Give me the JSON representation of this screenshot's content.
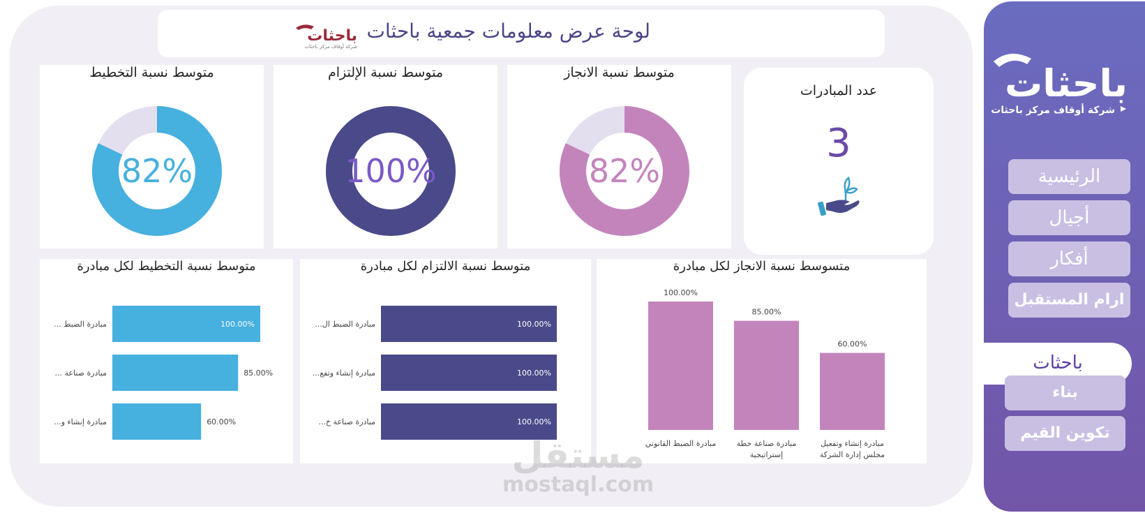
{
  "header": {
    "title": "لوحة عرض معلومات جمعية باحثات",
    "logo_text": "باحثات",
    "logo_subtext": "شركة أوقاف مركز باحثات"
  },
  "colors": {
    "planning": "#46b0df",
    "commitment": "#4a4a8a",
    "achievement": "#c384bc",
    "track": "#e4dfee",
    "commitment_label": "#7b59c6",
    "kpi_value": "#6a4aa8"
  },
  "kpis": {
    "initiatives_title": "عدد المبادرات",
    "initiatives_value": "3",
    "initiatives_icon": "hand-plant-icon"
  },
  "donuts": [
    {
      "title": "متوسط نسبة التخطيط",
      "label": "82%",
      "value": 0.82,
      "color_key": "planning"
    },
    {
      "title": "متوسط نسبة الإلتزام",
      "label": "100%",
      "value": 1.0,
      "color_key": "commitment"
    },
    {
      "title": "متوسط نسبة الانجاز",
      "label": "82%",
      "value": 0.82,
      "color_key": "achievement"
    }
  ],
  "chart_data": [
    {
      "type": "bar",
      "orientation": "horizontal",
      "title": "متوسط نسبة التخطيط لكل مبادرة",
      "categories": [
        "... مبادرة الضبط",
        "... مبادرة صناعة",
        "...مبادرة إنشاء و"
      ],
      "values": [
        100,
        85,
        60
      ],
      "value_labels": [
        "100.00%",
        "85.00%",
        "60.00%"
      ],
      "xlim": [
        0,
        100
      ],
      "color": "#46b0df"
    },
    {
      "type": "bar",
      "orientation": "horizontal",
      "title": "متوسط نسبة الالتزام لكل مبادرة",
      "categories": [
        "...مبادرة الضبط ال",
        "...مبادرة إنشاء وتفع",
        "...مبادرة صناعة خ"
      ],
      "values": [
        100,
        100,
        100
      ],
      "value_labels": [
        "100.00%",
        "100.00%",
        "100.00%"
      ],
      "xlim": [
        0,
        100
      ],
      "color": "#4a4a8a"
    },
    {
      "type": "bar",
      "orientation": "vertical",
      "title": "متسوسط نسبة الانجاز لكل مبادرة",
      "categories": [
        [
          "مبادرة الضبط القانوني"
        ],
        [
          "مبادرة صناعة خطة",
          "إستراتيجية"
        ],
        [
          "مبادرة إنشاء وتفعيل",
          "مجلس إدارة الشركة"
        ]
      ],
      "values": [
        100,
        85,
        60
      ],
      "value_labels": [
        "100.00%",
        "85.00%",
        "60.00%"
      ],
      "ylim": [
        0,
        100
      ],
      "color": "#c384bc"
    }
  ],
  "sidebar": {
    "logo_text": "باحثات",
    "logo_subtext": "شركة أوقاف مركز باحثات",
    "nav_items": [
      {
        "label": "الرئيسية"
      },
      {
        "label": "أجيال"
      },
      {
        "label": "أفكار"
      },
      {
        "label": "ارام المستقبل"
      }
    ],
    "active_item": "باحثات",
    "sub_items": [
      {
        "label": "بناء"
      },
      {
        "label": "تكوين القيم"
      }
    ]
  },
  "watermark": {
    "arabic": "مستقل",
    "latin": "mostaql.com"
  }
}
